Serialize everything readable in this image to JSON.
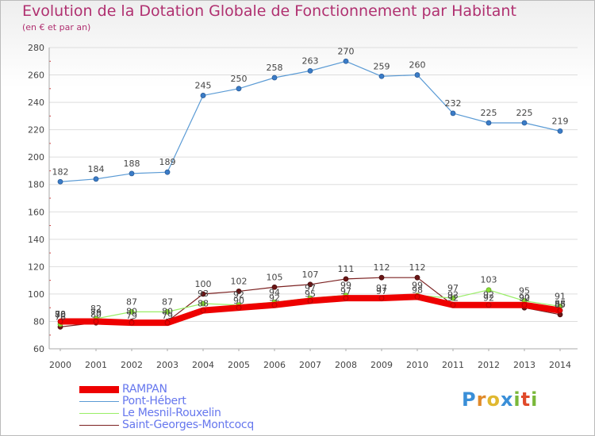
{
  "chart_data": {
    "type": "line",
    "title": "Evolution de la Dotation Globale de Fonctionnement par Habitant",
    "subtitle": "(en € et par an)",
    "xlabel": "",
    "ylabel": "",
    "ylim": [
      60,
      280
    ],
    "yticks": [
      60,
      80,
      100,
      120,
      140,
      160,
      180,
      200,
      220,
      240,
      260,
      280
    ],
    "categories": [
      "2000",
      "2001",
      "2002",
      "2003",
      "2004",
      "2005",
      "2006",
      "2007",
      "2008",
      "2009",
      "2010",
      "2011",
      "2012",
      "2013",
      "2014"
    ],
    "series": [
      {
        "name": "Pont-Hébert",
        "color": "#5b9bd5",
        "values": [
          182,
          184,
          188,
          189,
          245,
          250,
          258,
          263,
          270,
          259,
          260,
          232,
          225,
          225,
          219
        ]
      },
      {
        "name": "Saint-Georges-Montcocq",
        "color": "#7b2020",
        "values": [
          76,
          79,
          80,
          80,
          100,
          102,
          105,
          107,
          111,
          112,
          112,
          92,
          92,
          90,
          85
        ]
      },
      {
        "name": "Le Mesnil-Rouxelin",
        "color": "#99ee66",
        "values": [
          78,
          82,
          87,
          87,
          93,
          92,
          94,
          97,
          99,
          97,
          99,
          97,
          103,
          95,
          91
        ]
      },
      {
        "name": "RAMPAN",
        "color": "#ee0000",
        "values": [
          80,
          80,
          79,
          79,
          88,
          90,
          92,
          95,
          97,
          97,
          98,
          92,
          92,
          92,
          88
        ]
      }
    ],
    "legend": [
      "RAMPAN",
      "Pont-Hébert",
      "Le Mesnil-Rouxelin",
      "Saint-Georges-Montcocq"
    ],
    "legend_position": "bottom-left"
  },
  "logo": [
    "P",
    "r",
    "o",
    "x",
    "i",
    "t",
    "i"
  ]
}
